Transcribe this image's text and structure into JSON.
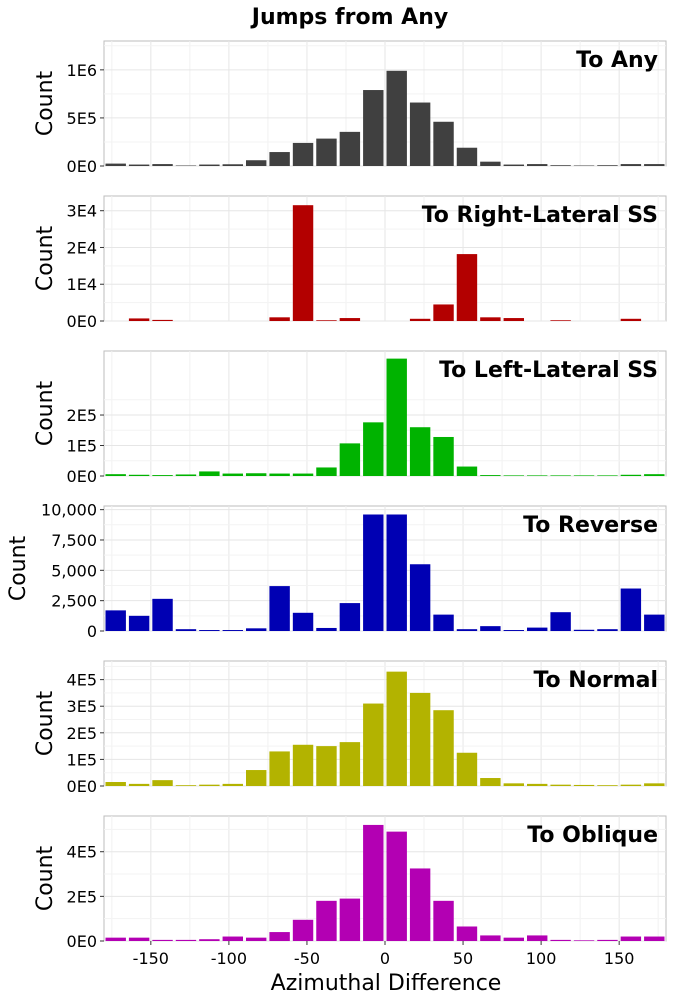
{
  "figure": {
    "title": "Jumps from Any",
    "xlabel": "Azimuthal Difference",
    "x_ticks": [
      "-150",
      "-100",
      "-50",
      "0",
      "50",
      "100",
      "150"
    ]
  },
  "chart_data": [
    {
      "type": "bar",
      "title": "To Any",
      "ylabel": "Count",
      "color": "#404040",
      "xlim": [
        -180,
        180
      ],
      "bin_width": 15,
      "bin_centers": [
        -172.5,
        -157.5,
        -142.5,
        -127.5,
        -112.5,
        -97.5,
        -82.5,
        -67.5,
        -52.5,
        -37.5,
        -22.5,
        -7.5,
        7.5,
        22.5,
        37.5,
        52.5,
        67.5,
        82.5,
        97.5,
        112.5,
        127.5,
        142.5,
        157.5,
        172.5
      ],
      "values": [
        25000,
        15000,
        20000,
        5000,
        15000,
        18000,
        60000,
        145000,
        240000,
        285000,
        355000,
        790000,
        990000,
        660000,
        460000,
        190000,
        45000,
        15000,
        20000,
        8000,
        5000,
        8000,
        20000,
        20000
      ],
      "ylim": [
        0,
        1300000
      ],
      "y_ticks": [
        {
          "value": 0,
          "label": "0E0"
        },
        {
          "value": 500000,
          "label": "5E5"
        },
        {
          "value": 1000000,
          "label": "1E6"
        }
      ]
    },
    {
      "type": "bar",
      "title": "To Right-Lateral SS",
      "ylabel": "Count",
      "color": "#b30000",
      "xlim": [
        -180,
        180
      ],
      "bin_width": 15,
      "bin_centers": [
        -172.5,
        -157.5,
        -142.5,
        -127.5,
        -112.5,
        -97.5,
        -82.5,
        -67.5,
        -52.5,
        -37.5,
        -22.5,
        -7.5,
        7.5,
        22.5,
        37.5,
        52.5,
        67.5,
        82.5,
        97.5,
        112.5,
        127.5,
        142.5,
        157.5,
        172.5
      ],
      "values": [
        0,
        700,
        300,
        0,
        0,
        0,
        0,
        1000,
        31500,
        200,
        800,
        0,
        0,
        600,
        4500,
        18200,
        1000,
        800,
        0,
        200,
        0,
        0,
        600,
        0
      ],
      "ylim": [
        0,
        34000
      ],
      "y_ticks": [
        {
          "value": 0,
          "label": "0E0"
        },
        {
          "value": 10000,
          "label": "1E4"
        },
        {
          "value": 20000,
          "label": "2E4"
        },
        {
          "value": 30000,
          "label": "3E4"
        }
      ]
    },
    {
      "type": "bar",
      "title": "To Left-Lateral SS",
      "ylabel": "Count",
      "color": "#00b300",
      "xlim": [
        -180,
        180
      ],
      "bin_width": 15,
      "bin_centers": [
        -172.5,
        -157.5,
        -142.5,
        -127.5,
        -112.5,
        -97.5,
        -82.5,
        -67.5,
        -52.5,
        -37.5,
        -22.5,
        -7.5,
        7.5,
        22.5,
        37.5,
        52.5,
        67.5,
        82.5,
        97.5,
        112.5,
        127.5,
        142.5,
        157.5,
        172.5
      ],
      "values": [
        6000,
        4000,
        3000,
        5000,
        15000,
        8000,
        9000,
        8000,
        8000,
        28000,
        107000,
        176000,
        385000,
        160000,
        128000,
        31000,
        3000,
        2000,
        2000,
        2000,
        2000,
        2000,
        4000,
        6000
      ],
      "ylim": [
        0,
        410000
      ],
      "y_ticks": [
        {
          "value": 0,
          "label": "0E0"
        },
        {
          "value": 100000,
          "label": "1E5"
        },
        {
          "value": 200000,
          "label": "2E5"
        }
      ]
    },
    {
      "type": "bar",
      "title": "To Reverse",
      "ylabel": "Count",
      "color": "#0000b3",
      "xlim": [
        -180,
        180
      ],
      "bin_width": 15,
      "bin_centers": [
        -172.5,
        -157.5,
        -142.5,
        -127.5,
        -112.5,
        -97.5,
        -82.5,
        -67.5,
        -52.5,
        -37.5,
        -22.5,
        -7.5,
        7.5,
        22.5,
        37.5,
        52.5,
        67.5,
        82.5,
        97.5,
        112.5,
        127.5,
        142.5,
        157.5,
        172.5
      ],
      "values": [
        1700,
        1250,
        2650,
        150,
        80,
        80,
        220,
        3700,
        1500,
        250,
        2300,
        9600,
        9600,
        5500,
        1350,
        150,
        400,
        80,
        280,
        1550,
        100,
        150,
        3500,
        1350
      ],
      "ylim": [
        0,
        10300
      ],
      "y_ticks": [
        {
          "value": 0,
          "label": "0"
        },
        {
          "value": 2500,
          "label": "2,500"
        },
        {
          "value": 5000,
          "label": "5,000"
        },
        {
          "value": 7500,
          "label": "7,500"
        },
        {
          "value": 10000,
          "label": "10,000"
        }
      ]
    },
    {
      "type": "bar",
      "title": "To Normal",
      "ylabel": "Count",
      "color": "#b3b300",
      "xlim": [
        -180,
        180
      ],
      "bin_width": 15,
      "bin_centers": [
        -172.5,
        -157.5,
        -142.5,
        -127.5,
        -112.5,
        -97.5,
        -82.5,
        -67.5,
        -52.5,
        -37.5,
        -22.5,
        -7.5,
        7.5,
        22.5,
        37.5,
        52.5,
        67.5,
        82.5,
        97.5,
        112.5,
        127.5,
        142.5,
        157.5,
        172.5
      ],
      "values": [
        15000,
        8000,
        22000,
        3000,
        5000,
        8000,
        60000,
        130000,
        155000,
        150000,
        165000,
        310000,
        430000,
        350000,
        285000,
        125000,
        30000,
        10000,
        8000,
        5000,
        4000,
        3000,
        5000,
        10000
      ],
      "ylim": [
        0,
        470000
      ],
      "y_ticks": [
        {
          "value": 0,
          "label": "0E0"
        },
        {
          "value": 100000,
          "label": "1E5"
        },
        {
          "value": 200000,
          "label": "2E5"
        },
        {
          "value": 300000,
          "label": "3E5"
        },
        {
          "value": 400000,
          "label": "4E5"
        }
      ]
    },
    {
      "type": "bar",
      "title": "To Oblique",
      "ylabel": "Count",
      "color": "#b300b3",
      "xlim": [
        -180,
        180
      ],
      "bin_width": 15,
      "bin_centers": [
        -172.5,
        -157.5,
        -142.5,
        -127.5,
        -112.5,
        -97.5,
        -82.5,
        -67.5,
        -52.5,
        -37.5,
        -22.5,
        -7.5,
        7.5,
        22.5,
        37.5,
        52.5,
        67.5,
        82.5,
        97.5,
        112.5,
        127.5,
        142.5,
        157.5,
        172.5
      ],
      "values": [
        15000,
        15000,
        5000,
        5000,
        8000,
        20000,
        15000,
        40000,
        95000,
        180000,
        190000,
        520000,
        490000,
        325000,
        180000,
        65000,
        25000,
        15000,
        25000,
        5000,
        3000,
        5000,
        20000,
        20000
      ],
      "ylim": [
        0,
        560000
      ],
      "y_ticks": [
        {
          "value": 0,
          "label": "0E0"
        },
        {
          "value": 200000,
          "label": "2E5"
        },
        {
          "value": 400000,
          "label": "4E5"
        }
      ]
    }
  ]
}
